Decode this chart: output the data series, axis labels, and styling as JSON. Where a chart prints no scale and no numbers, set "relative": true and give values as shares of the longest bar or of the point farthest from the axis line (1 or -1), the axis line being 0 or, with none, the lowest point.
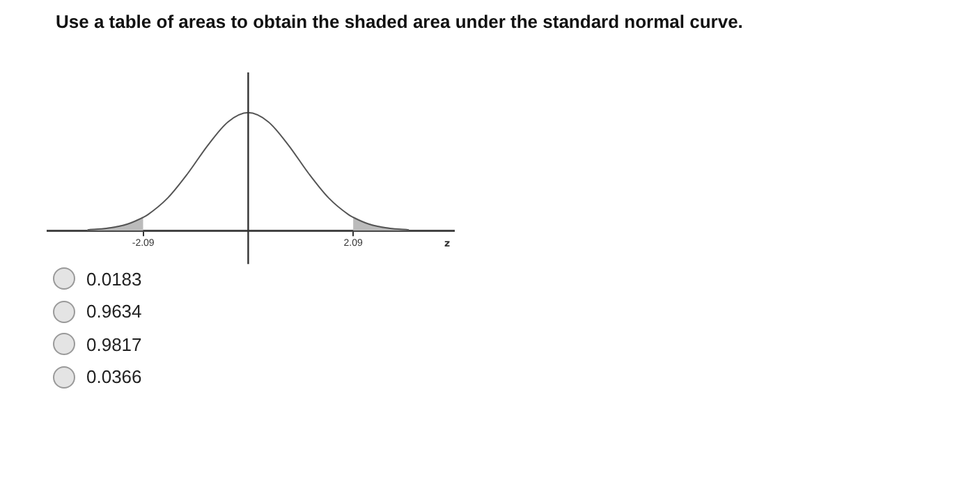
{
  "chart_data": {
    "type": "line",
    "title": "Use a table of areas to obtain the shaded area under the standard normal curve.",
    "xlabel": "z",
    "relative": true,
    "xlim": [
      -4,
      4.1
    ],
    "xticks": [
      -2.09,
      2.09
    ],
    "grid": false,
    "legend": false,
    "marker": "none",
    "ref_lines": [
      {
        "axis": "x",
        "value": 0,
        "color": "#333333"
      }
    ],
    "series": [
      {
        "type": "line",
        "color": "#555555",
        "x": [
          -3.2,
          -2.8,
          -2.4,
          -2.09,
          -2.0,
          -1.6,
          -1.2,
          -0.8,
          -0.4,
          0,
          0.4,
          0.8,
          1.2,
          1.6,
          2.0,
          2.09,
          2.4,
          2.8,
          3.2
        ],
        "values": [
          0.006,
          0.02,
          0.056,
          0.113,
          0.135,
          0.278,
          0.487,
          0.726,
          0.923,
          1,
          0.923,
          0.726,
          0.487,
          0.278,
          0.135,
          0.113,
          0.056,
          0.02,
          0.006
        ]
      },
      {
        "type": "area",
        "color": "#bbbbbb",
        "x": [
          -3.2,
          -2.8,
          -2.4,
          -2.09
        ],
        "values": [
          0.006,
          0.02,
          0.056,
          0.113
        ]
      },
      {
        "type": "area",
        "color": "#bbbbbb",
        "x": [
          2.09,
          2.4,
          2.8,
          3.2
        ],
        "values": [
          0.113,
          0.056,
          0.02,
          0.006
        ]
      }
    ],
    "annotations": [
      "0.0183",
      "0.9634",
      "0.9817",
      "0.0366"
    ]
  }
}
